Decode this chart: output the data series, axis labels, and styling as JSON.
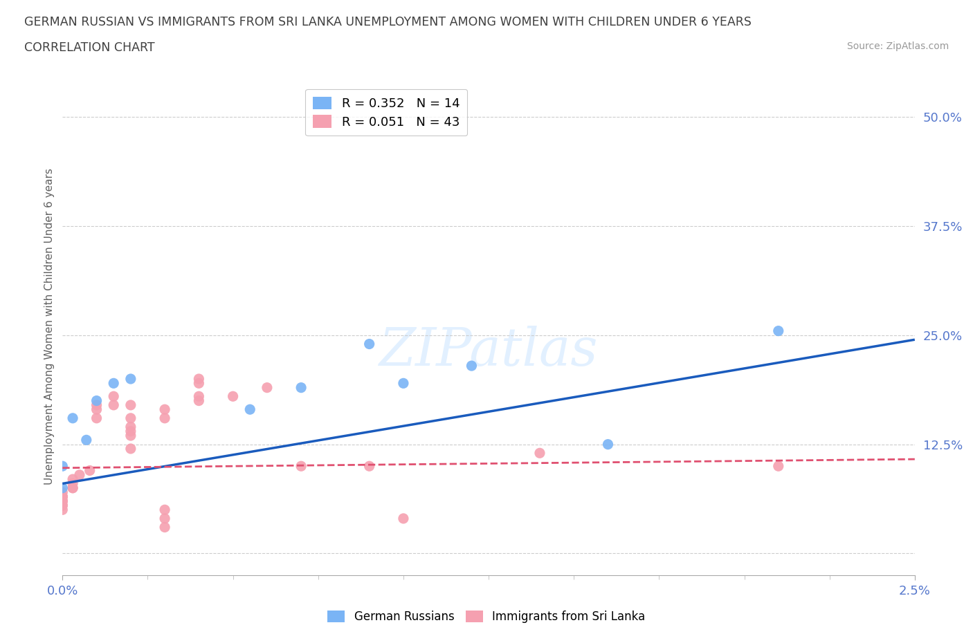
{
  "title_line1": "GERMAN RUSSIAN VS IMMIGRANTS FROM SRI LANKA UNEMPLOYMENT AMONG WOMEN WITH CHILDREN UNDER 6 YEARS",
  "title_line2": "CORRELATION CHART",
  "source": "Source: ZipAtlas.com",
  "ylabel": "Unemployment Among Women with Children Under 6 years",
  "watermark": "ZIPatlas",
  "xlim": [
    0.0,
    0.025
  ],
  "ylim": [
    -0.025,
    0.545
  ],
  "yticks": [
    0.0,
    0.125,
    0.25,
    0.375,
    0.5
  ],
  "ytick_labels": [
    "",
    "12.5%",
    "25.0%",
    "37.5%",
    "50.0%"
  ],
  "xticks": [
    0.0,
    0.025
  ],
  "xtick_labels": [
    "0.0%",
    "2.5%"
  ],
  "legend_entries": [
    {
      "label": "R = 0.352   N = 14",
      "color": "#7ab4f5"
    },
    {
      "label": "R = 0.051   N = 43",
      "color": "#f5a0b0"
    }
  ],
  "german_russians_x": [
    0.0,
    0.0,
    0.0003,
    0.0007,
    0.001,
    0.0015,
    0.002,
    0.0055,
    0.007,
    0.009,
    0.01,
    0.012,
    0.016,
    0.021
  ],
  "german_russians_y": [
    0.075,
    0.1,
    0.155,
    0.13,
    0.175,
    0.195,
    0.2,
    0.165,
    0.19,
    0.24,
    0.195,
    0.215,
    0.125,
    0.255
  ],
  "sri_lanka_x": [
    0.0,
    0.0,
    0.0,
    0.0,
    0.0,
    0.0,
    0.0,
    0.0,
    0.0,
    0.0,
    0.0003,
    0.0003,
    0.0003,
    0.0003,
    0.0005,
    0.0008,
    0.001,
    0.001,
    0.001,
    0.0015,
    0.0015,
    0.002,
    0.002,
    0.002,
    0.002,
    0.002,
    0.002,
    0.003,
    0.003,
    0.003,
    0.003,
    0.003,
    0.004,
    0.004,
    0.004,
    0.004,
    0.005,
    0.006,
    0.007,
    0.009,
    0.01,
    0.014,
    0.021
  ],
  "sri_lanka_y": [
    0.07,
    0.065,
    0.065,
    0.06,
    0.055,
    0.05,
    0.06,
    0.055,
    0.06,
    0.065,
    0.075,
    0.075,
    0.08,
    0.085,
    0.09,
    0.095,
    0.155,
    0.17,
    0.165,
    0.17,
    0.18,
    0.145,
    0.17,
    0.155,
    0.135,
    0.12,
    0.14,
    0.165,
    0.155,
    0.04,
    0.03,
    0.05,
    0.195,
    0.18,
    0.2,
    0.175,
    0.18,
    0.19,
    0.1,
    0.1,
    0.04,
    0.115,
    0.1
  ],
  "blue_color": "#7ab4f5",
  "pink_color": "#f5a0b0",
  "blue_line_color": "#1a5bbd",
  "pink_line_color": "#e05070",
  "background_color": "#ffffff",
  "grid_color": "#cccccc",
  "title_color": "#404040",
  "axis_label_color": "#606060",
  "tick_label_color": "#5577cc",
  "dot_size": 120,
  "blue_trend_x0": 0.0,
  "blue_trend_y0": 0.08,
  "blue_trend_x1": 0.025,
  "blue_trend_y1": 0.245,
  "pink_trend_x0": 0.0,
  "pink_trend_y0": 0.098,
  "pink_trend_x1": 0.025,
  "pink_trend_y1": 0.108
}
